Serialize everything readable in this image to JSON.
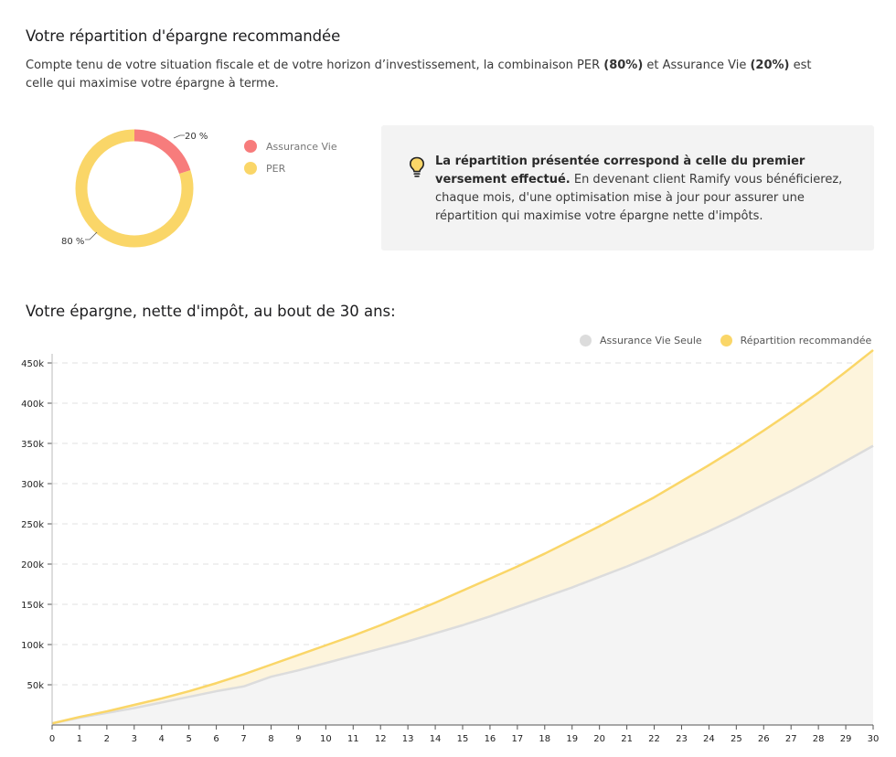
{
  "section1": {
    "title": "Votre répartition d'épargne recommandée",
    "para_pre": "Compte tenu de votre situation fiscale et de votre horizon d’investissement, la combinaison PER ",
    "para_b1": "(80%)",
    "para_mid": " et Assurance Vie ",
    "para_b2": "(20%)",
    "para_post": " est celle qui maximise votre épargne à terme."
  },
  "info": {
    "bold": "La répartition présentée correspond à celle du premier versement effectué.",
    "text": " En devenant client Ramify vous bénéficierez, chaque mois, d'une optimisation mise à jour pour assurer une répartition qui maximise votre épargne nette d'impôts.",
    "icon": "lightbulb-icon"
  },
  "colors": {
    "per": "#fad668",
    "assurance_vie": "#f77c7c",
    "av_seule": "#dcdcdc",
    "av_seule_fill": "#f4f4f4",
    "recommended_fill": "#fdf4dc"
  },
  "section2": {
    "title": "Votre épargne, nette d'impôt, au bout de 30 ans:"
  },
  "chart_data": [
    {
      "type": "pie",
      "style": "donut",
      "slices": [
        {
          "label": "Assurance Vie",
          "value": 20,
          "display": "20 %"
        },
        {
          "label": "PER",
          "value": 80,
          "display": "80 %"
        }
      ]
    },
    {
      "type": "area",
      "title": "Votre épargne, nette d'impôt, au bout de 30 ans:",
      "x": [
        0,
        1,
        2,
        3,
        4,
        5,
        6,
        7,
        8,
        9,
        10,
        11,
        12,
        13,
        14,
        15,
        16,
        17,
        18,
        19,
        20,
        21,
        22,
        23,
        24,
        25,
        26,
        27,
        28,
        29,
        30
      ],
      "xlim": [
        0,
        30
      ],
      "ylim": [
        0,
        450000
      ],
      "yticks": [
        50000,
        100000,
        150000,
        200000,
        250000,
        300000,
        350000,
        400000,
        450000
      ],
      "ytick_labels": [
        "50k",
        "100k",
        "150k",
        "200k",
        "250k",
        "300k",
        "350k",
        "400k",
        "450k"
      ],
      "grid": true,
      "legend": "top-right",
      "series": [
        {
          "name": "Assurance Vie Seule",
          "values": [
            2000,
            9000,
            15000,
            21000,
            28000,
            35000,
            42000,
            48000,
            60000,
            68000,
            77000,
            86000,
            95000,
            104000,
            114000,
            124000,
            135000,
            147000,
            159000,
            171000,
            184000,
            197000,
            211000,
            226000,
            241000,
            257000,
            274000,
            291000,
            309000,
            328000,
            347000
          ]
        },
        {
          "name": "Répartition recommandée",
          "values": [
            2000,
            10000,
            17000,
            25000,
            33000,
            42000,
            52000,
            63000,
            75000,
            87000,
            99000,
            111000,
            124000,
            138000,
            152000,
            167000,
            182000,
            197000,
            213000,
            230000,
            247000,
            265000,
            283000,
            303000,
            323000,
            344000,
            366000,
            389000,
            413000,
            439000,
            466000
          ]
        }
      ]
    }
  ]
}
